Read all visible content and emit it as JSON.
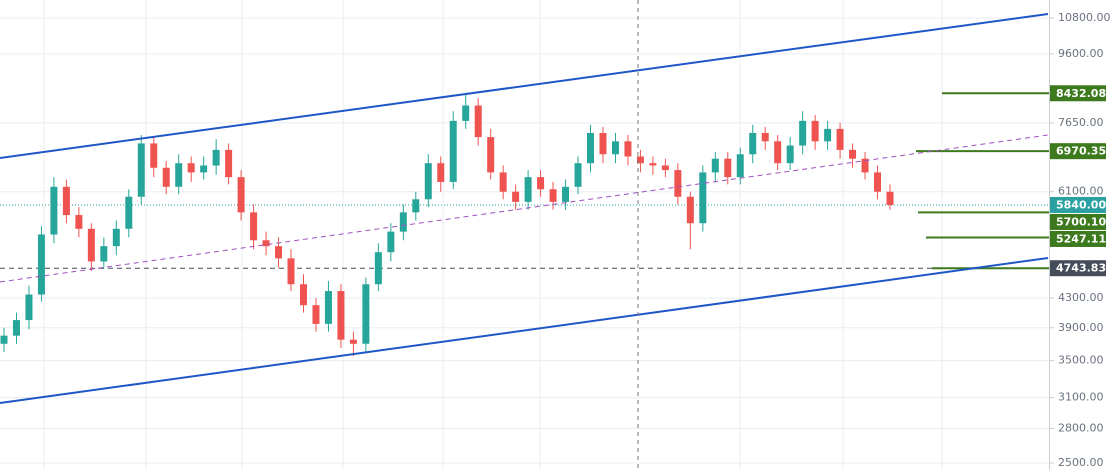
{
  "chart_data": {
    "type": "candlestick",
    "log_scale": true,
    "grid": true,
    "up_color": "#26a69a",
    "down_color": "#ef5350",
    "open": [
      3700,
      3800,
      4000,
      4350,
      5300,
      6200,
      5650,
      5400,
      4850,
      5100,
      5400,
      6000,
      7150,
      6600,
      6200,
      6700,
      6500,
      6650,
      7000,
      6400,
      5700,
      5200,
      5100,
      4900,
      4500,
      4200,
      3950,
      4400,
      3750,
      3700,
      4500,
      5000,
      5350,
      5700,
      5950,
      6700,
      6300,
      7700,
      8100,
      7300,
      6500,
      6100,
      5900,
      6400,
      6150,
      5900,
      6200,
      6700,
      7400,
      6900,
      7200,
      6850,
      6700,
      6650,
      6550,
      6000,
      5500,
      6500,
      6800,
      6400,
      6900,
      7400,
      7200,
      6700,
      7100,
      7700,
      7200,
      7500,
      7000,
      6800,
      6500,
      6100
    ],
    "high": [
      3900,
      4100,
      4480,
      5450,
      6400,
      6350,
      5800,
      5500,
      5250,
      5550,
      6150,
      7350,
      7300,
      6750,
      6900,
      6850,
      6850,
      7250,
      7150,
      6550,
      5850,
      5350,
      5250,
      5050,
      4650,
      4300,
      4550,
      4500,
      3850,
      4600,
      5150,
      5500,
      5850,
      6100,
      6900,
      6850,
      7950,
      8400,
      8300,
      7500,
      6650,
      6250,
      6550,
      6550,
      6300,
      6350,
      6850,
      7600,
      7550,
      7400,
      7350,
      7000,
      6850,
      6800,
      6700,
      6100,
      6650,
      6950,
      6950,
      7050,
      7600,
      7550,
      7350,
      7300,
      7950,
      7850,
      7700,
      7650,
      7150,
      6950,
      6650,
      6250
    ],
    "low": [
      3600,
      3700,
      3880,
      4250,
      5150,
      5500,
      5250,
      4700,
      4750,
      4950,
      5250,
      5850,
      6400,
      6050,
      6050,
      6300,
      6350,
      6450,
      6250,
      5550,
      5050,
      4950,
      4750,
      4400,
      4100,
      3850,
      3850,
      3650,
      3550,
      3600,
      4400,
      4850,
      5200,
      5550,
      5800,
      6100,
      6150,
      7500,
      7100,
      6350,
      5950,
      5750,
      5750,
      6000,
      5750,
      5750,
      6050,
      6500,
      6700,
      6700,
      6650,
      6500,
      6450,
      6400,
      5850,
      5050,
      5350,
      6300,
      6250,
      6250,
      6700,
      7000,
      6550,
      6550,
      6900,
      7000,
      7000,
      6800,
      6600,
      6350,
      5950,
      5750
    ],
    "close": [
      3800,
      4000,
      4350,
      5300,
      6200,
      5650,
      5400,
      4850,
      5100,
      5400,
      6000,
      7150,
      6600,
      6200,
      6700,
      6500,
      6650,
      7000,
      6400,
      5700,
      5200,
      5100,
      4900,
      4500,
      4200,
      3950,
      4400,
      3750,
      3700,
      4500,
      5000,
      5350,
      5700,
      5950,
      6700,
      6300,
      7700,
      8100,
      7300,
      6500,
      6100,
      5900,
      6400,
      6150,
      5900,
      6200,
      6700,
      7400,
      6900,
      7200,
      6850,
      6700,
      6650,
      6550,
      6000,
      5500,
      6500,
      6800,
      6400,
      6900,
      7400,
      7200,
      6700,
      7100,
      7700,
      7200,
      7500,
      7000,
      6800,
      6500,
      6100,
      5840
    ],
    "ylim": [
      2500,
      10800
    ],
    "yticks": [
      {
        "value": 2500,
        "label": "2500.00"
      },
      {
        "value": 2800,
        "label": "2800.00"
      },
      {
        "value": 3100,
        "label": "3100.00"
      },
      {
        "value": 3500,
        "label": "3500.00"
      },
      {
        "value": 3900,
        "label": "3900.00"
      },
      {
        "value": 4300,
        "label": "4300.00"
      },
      {
        "value": 6100,
        "label": "6100.00"
      },
      {
        "value": 7650,
        "label": "7650.00"
      },
      {
        "value": 9600,
        "label": "9600.00"
      },
      {
        "value": 10800,
        "label": "10800.00"
      }
    ],
    "levels": [
      {
        "value": 8432.08,
        "color": "#3d7a1e",
        "style": "solid"
      },
      {
        "value": 6970.35,
        "color": "#3d7a1e",
        "style": "solid"
      },
      {
        "value": 5840,
        "label": "5840.00",
        "color": "#2aa0a0",
        "style": "dotted"
      },
      {
        "value": 5700.1,
        "label": "5700.10",
        "color": "#3d7a1e",
        "style": "solid"
      },
      {
        "value": 5247.11,
        "color": "#3d7a1e",
        "style": "solid"
      },
      {
        "value": 4743.83,
        "color": "#454c5a",
        "style": "dashed"
      }
    ]
  }
}
